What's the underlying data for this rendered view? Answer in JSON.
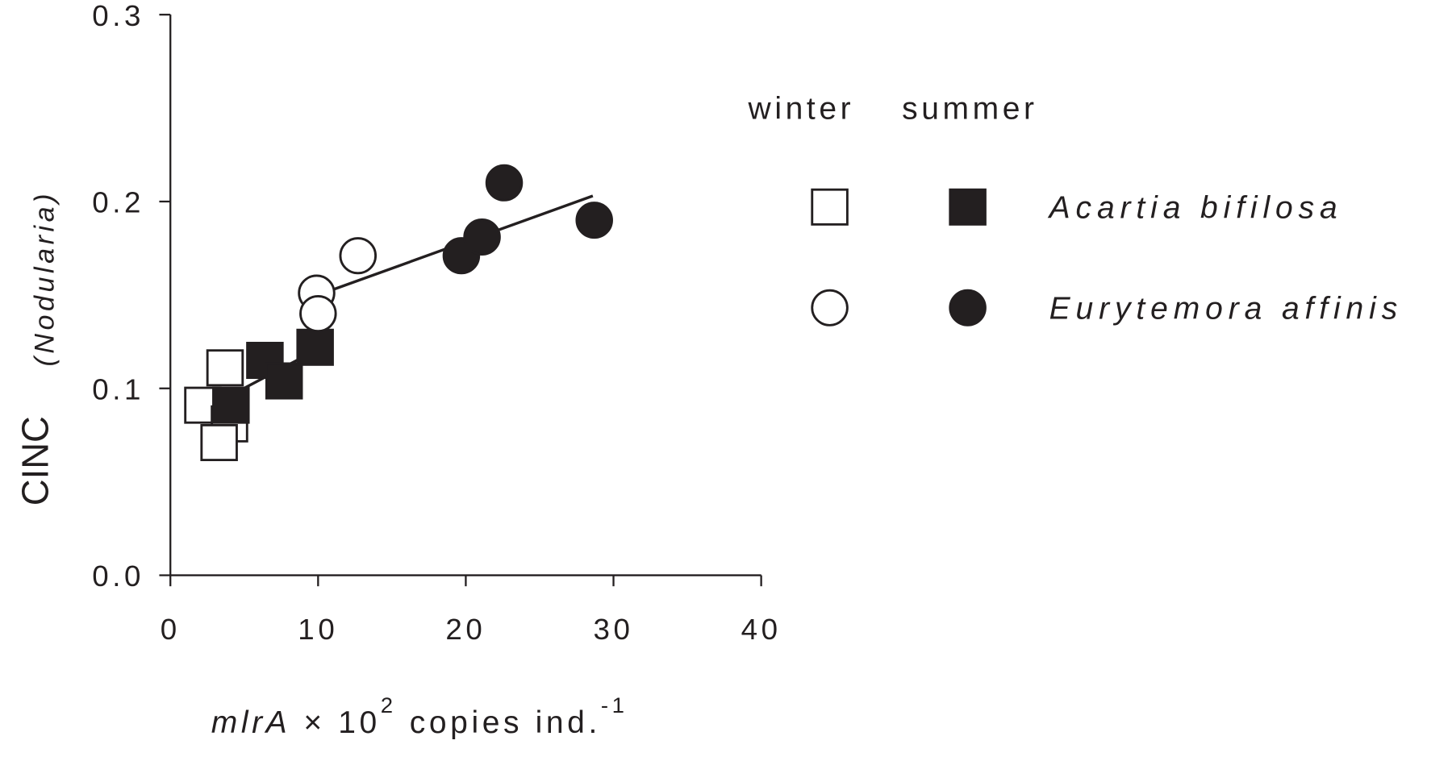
{
  "chart_data": {
    "type": "scatter",
    "y_label": "CINC",
    "y_label_italic": "(Nodularia)",
    "x_label": [
      "mlrA",
      "× 10",
      "2",
      "copies ind.",
      "-1"
    ],
    "legend_columns": [
      "winter",
      "summer"
    ],
    "color": "#231f20",
    "xlim": [
      0,
      40
    ],
    "xticks": [
      0,
      10,
      20,
      30,
      40
    ],
    "ylim": [
      0,
      0.3
    ],
    "yticks": [
      {
        "value": 0,
        "label": "0.0"
      },
      0.1,
      0.2,
      0.3
    ],
    "series": [
      {
        "name": "Acartia bifilosa",
        "marker": "square",
        "groups": [
          {
            "x": [
              2.2,
              3.7,
              4.0,
              3.3
            ],
            "y": [
              0.091,
              0.111,
              0.081,
              0.071
            ]
          },
          {
            "x": [
              4.1,
              6.4,
              7.7,
              9.8
            ],
            "y": [
              0.091,
              0.115,
              0.104,
              0.122
            ]
          }
        ]
      },
      {
        "name": "Eurytemora affinis",
        "marker": "circle",
        "groups": [
          {
            "x": [
              9.9,
              10.0,
              12.7
            ],
            "y": [
              0.151,
              0.14,
              0.171
            ]
          },
          {
            "x": [
              19.7,
              21.1,
              22.6,
              28.7
            ],
            "y": [
              0.171,
              0.181,
              0.21,
              0.19
            ]
          }
        ]
      }
    ],
    "trend_lines": [
      {
        "x": [
          2.1,
          10.0
        ],
        "y": [
          0.088,
          0.121
        ]
      },
      {
        "x": [
          10.0,
          28.6
        ],
        "y": [
          0.15,
          0.203
        ]
      }
    ]
  }
}
